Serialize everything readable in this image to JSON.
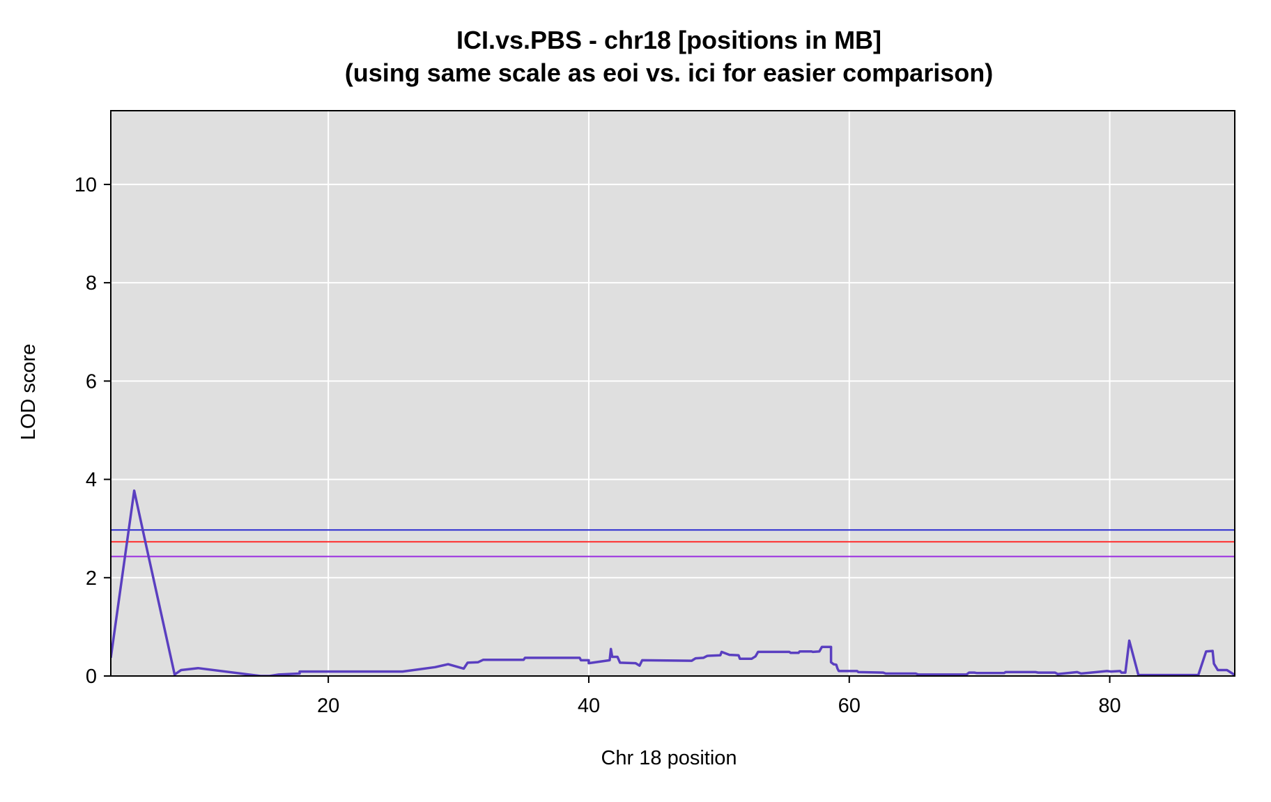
{
  "chart_data": {
    "type": "line",
    "title": "ICI.vs.PBS - chr18 [positions in MB]",
    "subtitle": "(using same scale as eoi vs. ici for easier comparison)",
    "xlabel": "Chr 18 position",
    "ylabel": "LOD score",
    "xlim": [
      3.3,
      89.6
    ],
    "ylim": [
      0,
      11.5
    ],
    "x_ticks": [
      20,
      40,
      60,
      80
    ],
    "y_ticks": [
      0,
      2,
      4,
      6,
      8,
      10
    ],
    "grid": true,
    "legend": "none",
    "colors": {
      "background": "#dfdfdf",
      "grid": "#ffffff",
      "series": "#5a3fc0"
    },
    "thresholds": [
      {
        "value": 2.97,
        "color": "#2b2bd0"
      },
      {
        "value": 2.73,
        "color": "#ff2a2a"
      },
      {
        "value": 2.43,
        "color": "#9a2be0"
      }
    ],
    "series": [
      {
        "x": [
          3.3,
          5.1,
          6.0,
          8.2,
          8.7,
          10.0,
          14.8,
          15.5,
          16.2,
          17.8,
          17.8,
          25.7,
          28.2,
          29.2,
          30.4,
          30.7,
          31.5,
          31.9,
          35.0,
          35.1,
          39.3,
          39.4,
          40.0,
          40.0,
          41.6,
          41.7,
          41.8,
          42.2,
          42.4,
          43.6,
          43.9,
          44.1,
          47.9,
          48.2,
          48.8,
          49.1,
          50.1,
          50.2,
          50.8,
          51.5,
          51.6,
          52.5,
          52.8,
          53.0,
          55.4,
          55.5,
          56.1,
          56.2,
          57.1,
          57.2,
          57.7,
          57.9,
          58.6,
          58.6,
          58.8,
          59.0,
          59.1,
          59.2,
          60.6,
          60.7,
          62.6,
          62.8,
          65.1,
          65.3,
          69.0,
          69.2,
          69.6,
          69.8,
          71.9,
          72.0,
          74.3,
          74.5,
          75.8,
          76.0,
          77.5,
          77.8,
          79.8,
          80.1,
          80.8,
          80.9,
          81.2,
          81.5,
          82.2,
          82.6,
          86.8,
          87.4,
          87.9,
          88.0,
          88.3,
          89.0,
          89.6
        ],
        "y": [
          0.37,
          3.77,
          2.67,
          0.03,
          0.12,
          0.16,
          0.0,
          0.0,
          0.03,
          0.05,
          0.09,
          0.09,
          0.18,
          0.24,
          0.15,
          0.27,
          0.28,
          0.33,
          0.33,
          0.37,
          0.37,
          0.32,
          0.32,
          0.26,
          0.32,
          0.55,
          0.39,
          0.39,
          0.27,
          0.26,
          0.21,
          0.32,
          0.31,
          0.36,
          0.37,
          0.41,
          0.42,
          0.49,
          0.43,
          0.42,
          0.35,
          0.35,
          0.4,
          0.49,
          0.49,
          0.47,
          0.47,
          0.5,
          0.5,
          0.49,
          0.5,
          0.59,
          0.59,
          0.28,
          0.24,
          0.23,
          0.15,
          0.1,
          0.1,
          0.08,
          0.07,
          0.05,
          0.05,
          0.03,
          0.03,
          0.07,
          0.07,
          0.06,
          0.06,
          0.08,
          0.08,
          0.07,
          0.07,
          0.04,
          0.08,
          0.05,
          0.1,
          0.09,
          0.1,
          0.07,
          0.07,
          0.72,
          0.02,
          0.02,
          0.02,
          0.5,
          0.51,
          0.25,
          0.12,
          0.12,
          0.02
        ]
      }
    ]
  }
}
